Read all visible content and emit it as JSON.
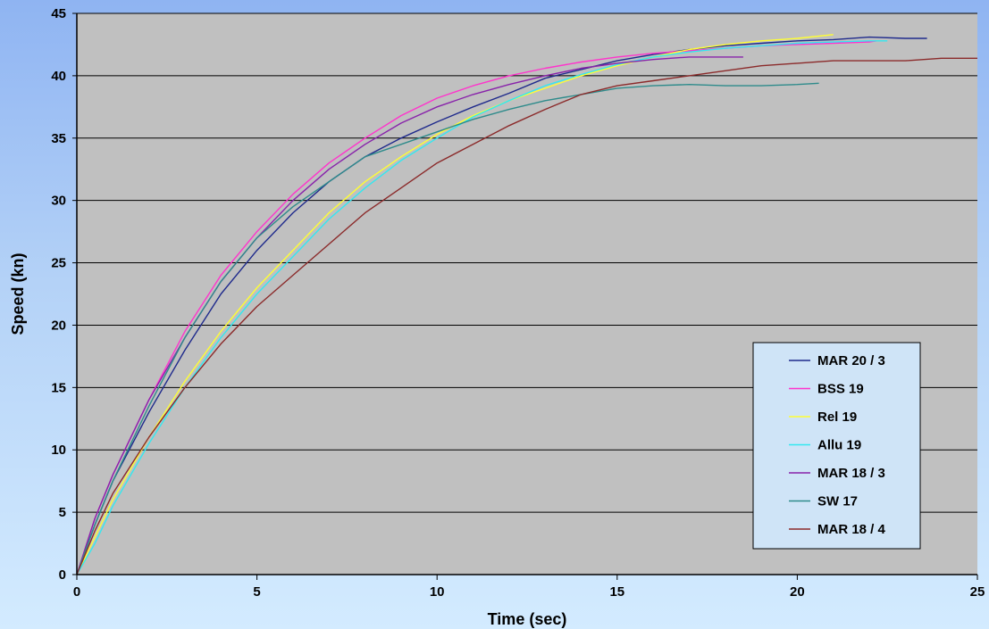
{
  "chart_data": {
    "type": "line",
    "title": "",
    "xlabel": "Time (sec)",
    "ylabel": "Speed (kn)",
    "xlim": [
      0,
      25
    ],
    "ylim": [
      0,
      45
    ],
    "x_ticks": [
      "0",
      "5",
      "10",
      "15",
      "20",
      "25"
    ],
    "y_ticks": [
      "0",
      "5",
      "10",
      "15",
      "20",
      "25",
      "30",
      "35",
      "40",
      "45"
    ],
    "grid": "horizontal",
    "legend_position": "bottom-right",
    "plot_background": "#c0c0c0",
    "series": [
      {
        "name": "MAR 20 / 3",
        "color": "#1f2a8c",
        "points": [
          [
            0,
            0
          ],
          [
            0.5,
            4
          ],
          [
            1,
            7.5
          ],
          [
            2,
            13
          ],
          [
            3,
            18
          ],
          [
            4,
            22.5
          ],
          [
            5,
            26
          ],
          [
            6,
            29
          ],
          [
            7,
            31.5
          ],
          [
            8,
            33.5
          ],
          [
            9,
            35
          ],
          [
            10,
            36.3
          ],
          [
            11,
            37.5
          ],
          [
            12,
            38.6
          ],
          [
            13,
            39.8
          ],
          [
            14,
            40.5
          ],
          [
            15,
            41.2
          ],
          [
            16,
            41.7
          ],
          [
            17,
            42.1
          ],
          [
            18,
            42.4
          ],
          [
            19,
            42.6
          ],
          [
            20,
            42.8
          ],
          [
            21,
            42.9
          ],
          [
            22,
            43.1
          ],
          [
            23,
            43
          ],
          [
            23.6,
            43
          ]
        ]
      },
      {
        "name": "BSS 19",
        "color": "#ff33cc",
        "points": [
          [
            0,
            0
          ],
          [
            0.5,
            4.5
          ],
          [
            1,
            8
          ],
          [
            2,
            14
          ],
          [
            3,
            19.5
          ],
          [
            4,
            24
          ],
          [
            5,
            27.5
          ],
          [
            6,
            30.5
          ],
          [
            7,
            33
          ],
          [
            8,
            35
          ],
          [
            9,
            36.8
          ],
          [
            10,
            38.2
          ],
          [
            11,
            39.2
          ],
          [
            12,
            40
          ],
          [
            13,
            40.6
          ],
          [
            14,
            41.1
          ],
          [
            15,
            41.5
          ],
          [
            16,
            41.8
          ],
          [
            17,
            42
          ],
          [
            18,
            42.2
          ],
          [
            19,
            42.4
          ],
          [
            20,
            42.5
          ],
          [
            21,
            42.6
          ],
          [
            22,
            42.7
          ],
          [
            22.2,
            42.8
          ]
        ]
      },
      {
        "name": "Rel 19",
        "color": "#ffff33",
        "points": [
          [
            0,
            0
          ],
          [
            0.5,
            3
          ],
          [
            1,
            6
          ],
          [
            2,
            11
          ],
          [
            3,
            15.5
          ],
          [
            4,
            19.5
          ],
          [
            5,
            23
          ],
          [
            6,
            26
          ],
          [
            7,
            29
          ],
          [
            8,
            31.5
          ],
          [
            9,
            33.5
          ],
          [
            10,
            35.3
          ],
          [
            11,
            36.8
          ],
          [
            12,
            38
          ],
          [
            13,
            39
          ],
          [
            14,
            40
          ],
          [
            15,
            40.8
          ],
          [
            16,
            41.5
          ],
          [
            17,
            42.1
          ],
          [
            18,
            42.5
          ],
          [
            19,
            42.8
          ],
          [
            20,
            43
          ],
          [
            21,
            43.3
          ]
        ]
      },
      {
        "name": "Allu 19",
        "color": "#33e8f0",
        "points": [
          [
            0,
            0
          ],
          [
            0.5,
            2.5
          ],
          [
            1,
            5.5
          ],
          [
            2,
            10.5
          ],
          [
            3,
            15
          ],
          [
            4,
            19
          ],
          [
            5,
            22.5
          ],
          [
            6,
            25.5
          ],
          [
            7,
            28.5
          ],
          [
            8,
            31
          ],
          [
            9,
            33.2
          ],
          [
            10,
            35
          ],
          [
            11,
            36.7
          ],
          [
            12,
            38
          ],
          [
            13,
            39.2
          ],
          [
            14,
            40.1
          ],
          [
            15,
            40.9
          ],
          [
            16,
            41.5
          ],
          [
            17,
            41.9
          ],
          [
            18,
            42.2
          ],
          [
            19,
            42.4
          ],
          [
            20,
            42.6
          ],
          [
            21,
            42.7
          ],
          [
            22,
            42.8
          ],
          [
            22.5,
            42.8
          ]
        ]
      },
      {
        "name": "MAR 18 / 3",
        "color": "#8822aa",
        "points": [
          [
            0,
            0
          ],
          [
            0.5,
            4.5
          ],
          [
            1,
            8
          ],
          [
            2,
            14
          ],
          [
            3,
            19
          ],
          [
            4,
            23.5
          ],
          [
            5,
            27
          ],
          [
            6,
            30
          ],
          [
            7,
            32.5
          ],
          [
            8,
            34.5
          ],
          [
            9,
            36.2
          ],
          [
            10,
            37.5
          ],
          [
            11,
            38.5
          ],
          [
            12,
            39.3
          ],
          [
            13,
            40
          ],
          [
            14,
            40.6
          ],
          [
            15,
            41
          ],
          [
            16,
            41.3
          ],
          [
            17,
            41.5
          ],
          [
            18,
            41.5
          ],
          [
            18.5,
            41.5
          ]
        ]
      },
      {
        "name": "SW 17",
        "color": "#2e8b8b",
        "points": [
          [
            0,
            0
          ],
          [
            0.5,
            4
          ],
          [
            1,
            7.5
          ],
          [
            2,
            13.5
          ],
          [
            3,
            19
          ],
          [
            4,
            23.5
          ],
          [
            5,
            27
          ],
          [
            6,
            29.5
          ],
          [
            7,
            31.5
          ],
          [
            8,
            33.5
          ],
          [
            9,
            34.5
          ],
          [
            10,
            35.5
          ],
          [
            11,
            36.5
          ],
          [
            12,
            37.3
          ],
          [
            13,
            38
          ],
          [
            14,
            38.5
          ],
          [
            15,
            39
          ],
          [
            16,
            39.2
          ],
          [
            17,
            39.3
          ],
          [
            18,
            39.2
          ],
          [
            19,
            39.2
          ],
          [
            20,
            39.3
          ],
          [
            20.6,
            39.4
          ]
        ]
      },
      {
        "name": "MAR 18 / 4",
        "color": "#8b2a2a",
        "points": [
          [
            0,
            0
          ],
          [
            0.5,
            3.5
          ],
          [
            1,
            6.5
          ],
          [
            2,
            11
          ],
          [
            3,
            15
          ],
          [
            4,
            18.5
          ],
          [
            5,
            21.5
          ],
          [
            6,
            24
          ],
          [
            7,
            26.5
          ],
          [
            8,
            29
          ],
          [
            9,
            31
          ],
          [
            10,
            33
          ],
          [
            11,
            34.5
          ],
          [
            12,
            36
          ],
          [
            13,
            37.3
          ],
          [
            14,
            38.5
          ],
          [
            15,
            39.2
          ],
          [
            16,
            39.6
          ],
          [
            17,
            40
          ],
          [
            18,
            40.4
          ],
          [
            19,
            40.8
          ],
          [
            20,
            41
          ],
          [
            21,
            41.2
          ],
          [
            22,
            41.2
          ],
          [
            23,
            41.2
          ],
          [
            24,
            41.4
          ],
          [
            25,
            41.4
          ]
        ]
      }
    ]
  }
}
